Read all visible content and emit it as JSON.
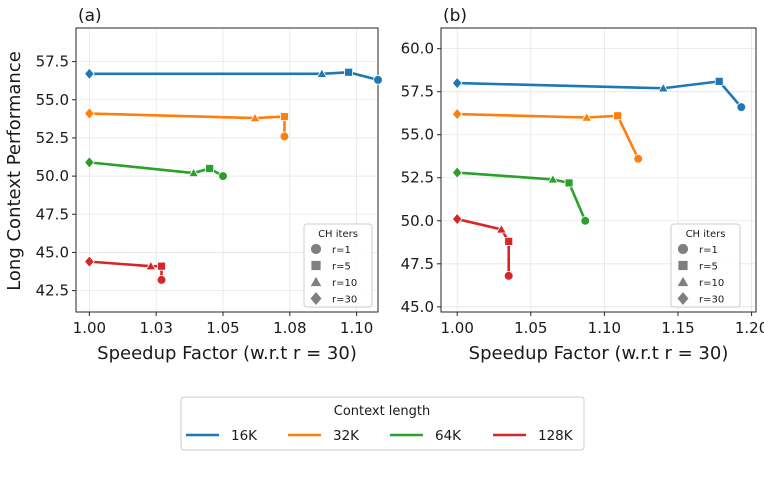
{
  "ylabel": "Long Context Performance",
  "markers_legend": {
    "title": "CH iters",
    "entries": [
      {
        "label": "r=1",
        "marker": "circle"
      },
      {
        "label": "r=5",
        "marker": "square"
      },
      {
        "label": "r=10",
        "marker": "triangle"
      },
      {
        "label": "r=30",
        "marker": "diamond"
      }
    ]
  },
  "context_legend": {
    "title": "Context length",
    "entries": [
      {
        "label": "16K",
        "color": "#1f77b4"
      },
      {
        "label": "32K",
        "color": "#ff7f0e"
      },
      {
        "label": "64K",
        "color": "#2ca02c"
      },
      {
        "label": "128K",
        "color": "#d62728"
      }
    ]
  },
  "chart_data": [
    {
      "type": "line",
      "panel_label": "(a)",
      "xlabel": "Speedup Factor (w.r.t r = 30)",
      "ylabel": "Long Context Performance",
      "xlim": [
        0.995,
        1.108
      ],
      "ylim": [
        41.1,
        59.7
      ],
      "xticks": [
        1.0,
        1.025,
        1.05,
        1.075,
        1.1
      ],
      "xtick_labels": [
        "1.00",
        "1.03",
        "1.05",
        "1.08",
        "1.10"
      ],
      "yticks": [
        42.5,
        45.0,
        47.5,
        50.0,
        52.5,
        55.0,
        57.5
      ],
      "ytick_labels": [
        "42.5",
        "45.0",
        "47.5",
        "50.0",
        "52.5",
        "55.0",
        "57.5"
      ],
      "grid": true,
      "legend_position": "bottom-right",
      "series": [
        {
          "name": "16K",
          "color": "#1f77b4",
          "points": [
            {
              "r": 30,
              "x": 1.0,
              "y": 56.7,
              "marker": "diamond"
            },
            {
              "r": 10,
              "x": 1.087,
              "y": 56.7,
              "marker": "triangle"
            },
            {
              "r": 5,
              "x": 1.097,
              "y": 56.8,
              "marker": "square"
            },
            {
              "r": 1,
              "x": 1.108,
              "y": 56.3,
              "marker": "circle"
            }
          ]
        },
        {
          "name": "32K",
          "color": "#ff7f0e",
          "points": [
            {
              "r": 30,
              "x": 1.0,
              "y": 54.1,
              "marker": "diamond"
            },
            {
              "r": 10,
              "x": 1.062,
              "y": 53.8,
              "marker": "triangle"
            },
            {
              "r": 5,
              "x": 1.073,
              "y": 53.9,
              "marker": "square"
            },
            {
              "r": 1,
              "x": 1.073,
              "y": 52.6,
              "marker": "circle"
            }
          ]
        },
        {
          "name": "64K",
          "color": "#2ca02c",
          "points": [
            {
              "r": 30,
              "x": 1.0,
              "y": 50.9,
              "marker": "diamond"
            },
            {
              "r": 10,
              "x": 1.039,
              "y": 50.2,
              "marker": "triangle"
            },
            {
              "r": 5,
              "x": 1.045,
              "y": 50.5,
              "marker": "square"
            },
            {
              "r": 1,
              "x": 1.05,
              "y": 50.0,
              "marker": "circle"
            }
          ]
        },
        {
          "name": "128K",
          "color": "#d62728",
          "points": [
            {
              "r": 30,
              "x": 1.0,
              "y": 44.4,
              "marker": "diamond"
            },
            {
              "r": 10,
              "x": 1.023,
              "y": 44.1,
              "marker": "triangle"
            },
            {
              "r": 5,
              "x": 1.027,
              "y": 44.1,
              "marker": "square"
            },
            {
              "r": 1,
              "x": 1.027,
              "y": 43.2,
              "marker": "circle"
            }
          ]
        }
      ]
    },
    {
      "type": "line",
      "panel_label": "(b)",
      "xlabel": "Speedup Factor (w.r.t r = 30)",
      "ylabel": "",
      "xlim": [
        0.989,
        1.203
      ],
      "ylim": [
        44.7,
        61.2
      ],
      "xticks": [
        1.0,
        1.05,
        1.1,
        1.15,
        1.2
      ],
      "xtick_labels": [
        "1.00",
        "1.05",
        "1.10",
        "1.15",
        "1.20"
      ],
      "yticks": [
        45.0,
        47.5,
        50.0,
        52.5,
        55.0,
        57.5,
        60.0
      ],
      "ytick_labels": [
        "45.0",
        "47.5",
        "50.0",
        "52.5",
        "55.0",
        "57.5",
        "60.0"
      ],
      "grid": true,
      "legend_position": "bottom-right",
      "series": [
        {
          "name": "16K",
          "color": "#1f77b4",
          "points": [
            {
              "r": 30,
              "x": 1.0,
              "y": 58.0,
              "marker": "diamond"
            },
            {
              "r": 10,
              "x": 1.14,
              "y": 57.7,
              "marker": "triangle"
            },
            {
              "r": 5,
              "x": 1.178,
              "y": 58.1,
              "marker": "square"
            },
            {
              "r": 1,
              "x": 1.193,
              "y": 56.6,
              "marker": "circle"
            }
          ]
        },
        {
          "name": "32K",
          "color": "#ff7f0e",
          "points": [
            {
              "r": 30,
              "x": 1.0,
              "y": 56.2,
              "marker": "diamond"
            },
            {
              "r": 10,
              "x": 1.088,
              "y": 56.0,
              "marker": "triangle"
            },
            {
              "r": 5,
              "x": 1.109,
              "y": 56.1,
              "marker": "square"
            },
            {
              "r": 1,
              "x": 1.123,
              "y": 53.6,
              "marker": "circle"
            }
          ]
        },
        {
          "name": "64K",
          "color": "#2ca02c",
          "points": [
            {
              "r": 30,
              "x": 1.0,
              "y": 52.8,
              "marker": "diamond"
            },
            {
              "r": 10,
              "x": 1.065,
              "y": 52.4,
              "marker": "triangle"
            },
            {
              "r": 5,
              "x": 1.076,
              "y": 52.2,
              "marker": "square"
            },
            {
              "r": 1,
              "x": 1.087,
              "y": 50.0,
              "marker": "circle"
            }
          ]
        },
        {
          "name": "128K",
          "color": "#d62728",
          "points": [
            {
              "r": 30,
              "x": 1.0,
              "y": 50.1,
              "marker": "diamond"
            },
            {
              "r": 10,
              "x": 1.03,
              "y": 49.5,
              "marker": "triangle"
            },
            {
              "r": 5,
              "x": 1.035,
              "y": 48.8,
              "marker": "square"
            },
            {
              "r": 1,
              "x": 1.035,
              "y": 46.8,
              "marker": "circle"
            }
          ]
        }
      ]
    }
  ]
}
